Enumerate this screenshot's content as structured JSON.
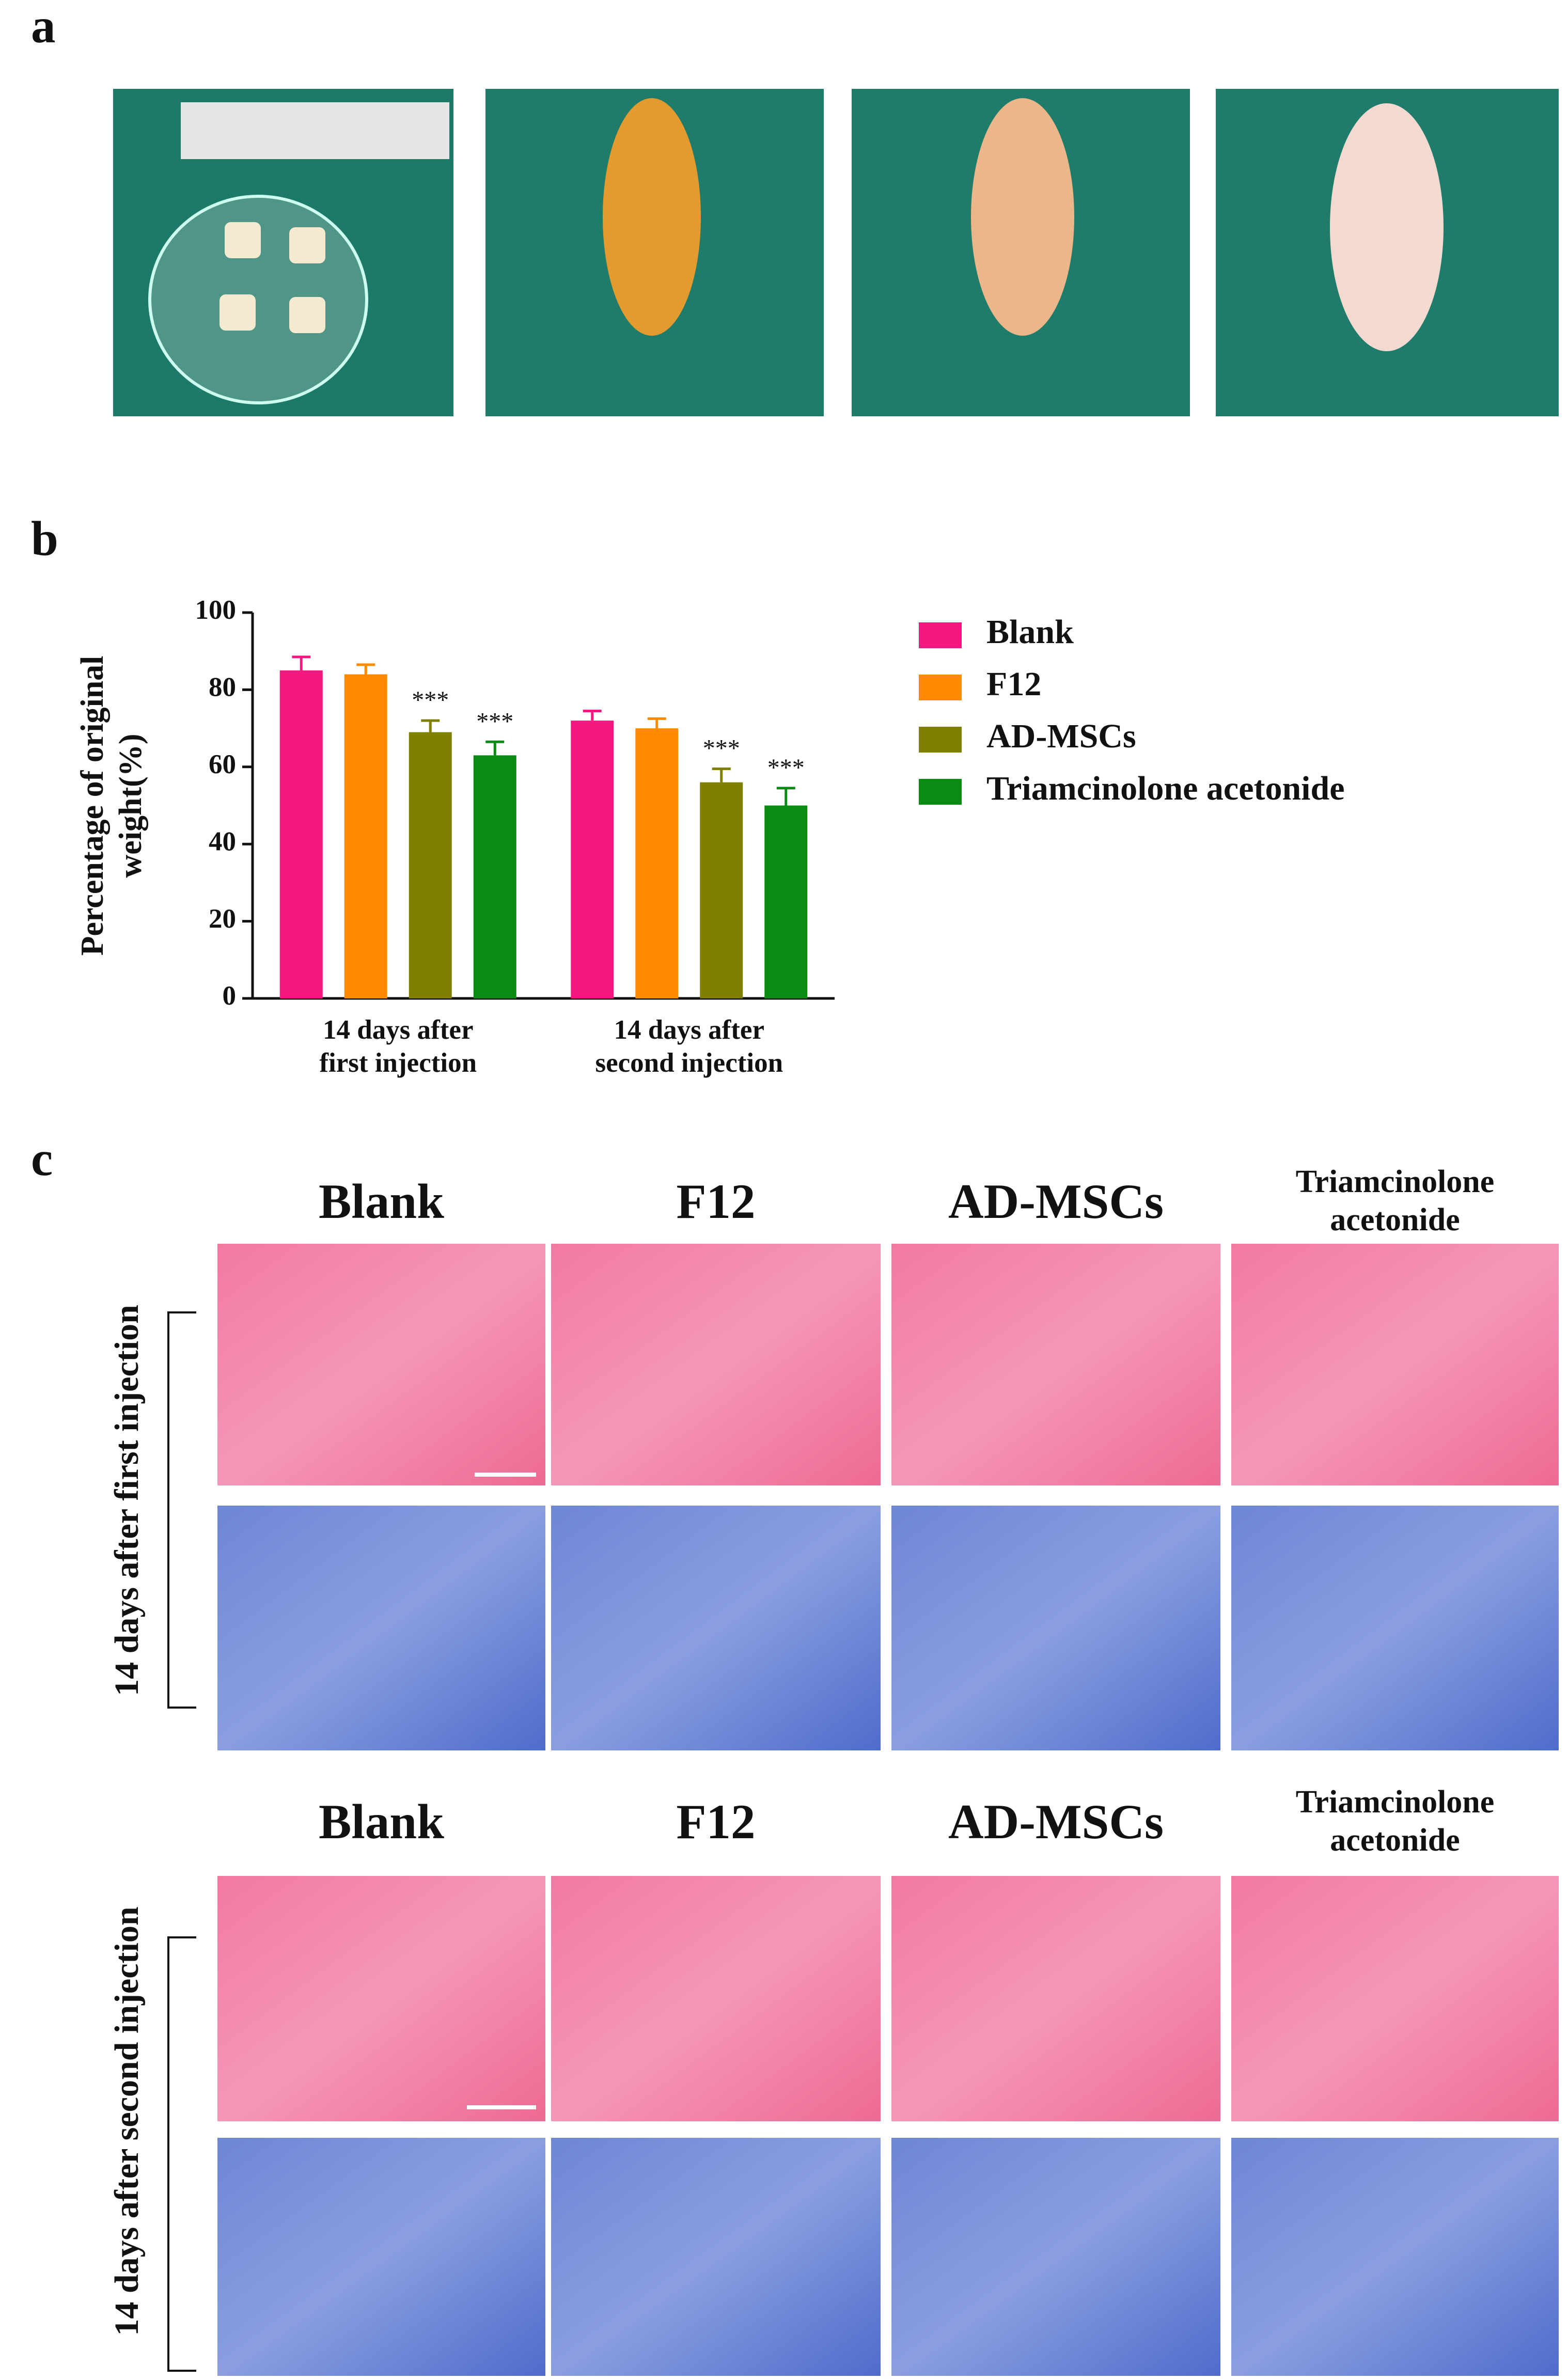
{
  "panel_labels": [
    "a",
    "b",
    "c"
  ],
  "chart_data": {
    "type": "bar",
    "y_label": "Percentage of original\nweight(%)",
    "categories": [
      "14 days after\nfirst injection",
      "14 days after\nsecond injection"
    ],
    "series": [
      {
        "name": "Blank",
        "color": "#f2187f",
        "values": [
          85,
          72
        ],
        "errors": [
          3.5,
          2.5
        ]
      },
      {
        "name": "F12",
        "color": "#ff8a00",
        "values": [
          84,
          70
        ],
        "errors": [
          2.5,
          2.5
        ]
      },
      {
        "name": "AD-MSCs",
        "color": "#7f7f00",
        "values": [
          69,
          56
        ],
        "errors": [
          3,
          3.5
        ],
        "significance": [
          "***",
          "***"
        ]
      },
      {
        "name": "Triamcinolone acetonide",
        "color": "#0b8a14",
        "values": [
          63,
          50
        ],
        "errors": [
          3.5,
          4.5
        ],
        "significance": [
          "***",
          "***"
        ]
      }
    ],
    "ylim": [
      0,
      100
    ],
    "yticks": [
      0,
      20,
      40,
      60,
      80,
      100
    ],
    "grid": false
  },
  "histology": {
    "columns": [
      "Blank",
      "F12",
      "AD-MSCs",
      "Triamcinolone\nacetonide"
    ],
    "rows": [
      "14 days after first injection",
      "14 days after second injection"
    ]
  }
}
